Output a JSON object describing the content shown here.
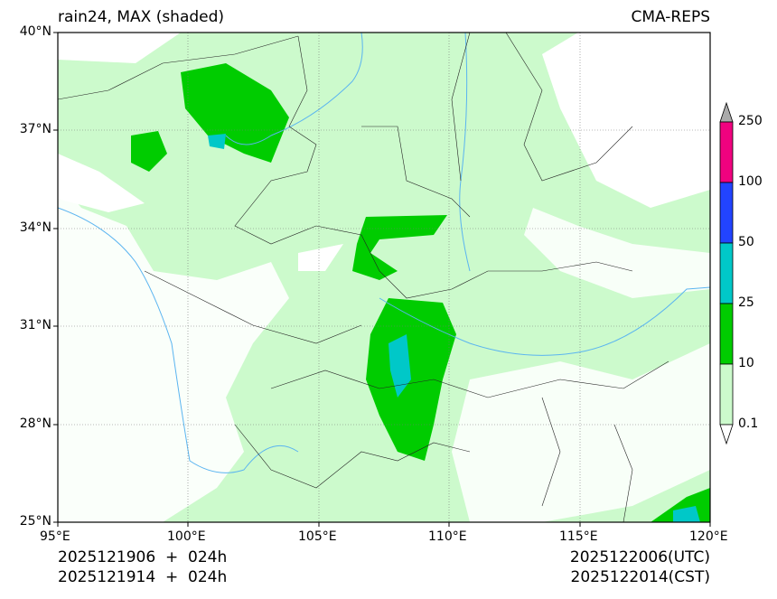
{
  "title_left": "rain24, MAX (shaded)",
  "title_right": "CMA-REPS",
  "lat_ticks": [
    "40°N",
    "37°N",
    "34°N",
    "31°N",
    "28°N",
    "25°N"
  ],
  "lon_ticks": [
    "95°E",
    "100°E",
    "105°E",
    "110°E",
    "115°E",
    "120°E"
  ],
  "colorbar": {
    "labels": [
      "250",
      "100",
      "50",
      "25",
      "10",
      "0.1"
    ],
    "colors": {
      "over": "#aaaaaa",
      "c100_250": "#f0027f",
      "c50_100": "#2244ff",
      "c25_50": "#00c8c8",
      "c10_25": "#00cc00",
      "c01_10": "#ccfacc",
      "under": "#ffffff"
    }
  },
  "footer": {
    "init_utc": "2025121906  +  024h",
    "init_cst": "2025121914  +  024h",
    "valid_utc": "2025122006(UTC)",
    "valid_cst": "2025122014(CST)"
  }
}
